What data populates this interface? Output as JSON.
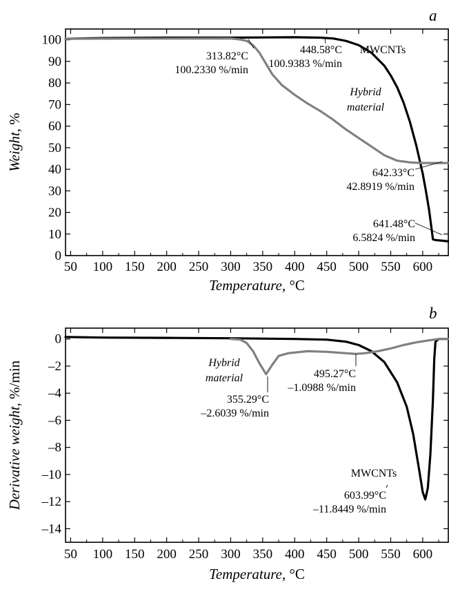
{
  "chart_data": [
    {
      "type": "line",
      "panel_label": "a",
      "xlabel": "Temperature",
      "xlabel_unit": "°C",
      "ylabel": "Weight",
      "ylabel_unit": "%",
      "xlim": [
        42,
        640
      ],
      "ylim": [
        0,
        105
      ],
      "xticks": [
        50,
        100,
        150,
        200,
        250,
        300,
        350,
        400,
        450,
        500,
        550,
        600
      ],
      "yticks": [
        0,
        10,
        20,
        30,
        40,
        50,
        60,
        70,
        80,
        90,
        100
      ],
      "grid": false,
      "series": [
        {
          "name": "MWCNTs",
          "color": "#000000",
          "x": [
            42,
            100,
            200,
            300,
            350,
            400,
            440,
            460,
            480,
            500,
            520,
            540,
            550,
            560,
            570,
            580,
            590,
            600,
            605,
            610,
            614,
            616,
            620,
            630,
            640
          ],
          "y": [
            100.5,
            100.8,
            101.0,
            101.0,
            101.1,
            101.2,
            101.0,
            100.6,
            99.5,
            97.5,
            94.0,
            88.0,
            83.5,
            78.0,
            71.0,
            62.0,
            51.0,
            38.0,
            30.0,
            21.0,
            12.0,
            7.5,
            7.2,
            6.9,
            6.6
          ]
        },
        {
          "name": "Hybrid material",
          "color": "#808080",
          "x": [
            42,
            300,
            314,
            325,
            335,
            345,
            355,
            365,
            380,
            400,
            420,
            440,
            460,
            480,
            500,
            520,
            540,
            560,
            580,
            600,
            620,
            640
          ],
          "y": [
            100.5,
            100.6,
            100.2,
            99.5,
            97.5,
            94.0,
            89.0,
            84.0,
            79.0,
            74.5,
            70.5,
            67.0,
            63.0,
            58.5,
            54.5,
            50.5,
            46.5,
            44.0,
            43.2,
            42.9,
            42.9,
            42.9
          ]
        }
      ],
      "annotations": [
        {
          "point": [
            313.82,
            100.2
          ],
          "text": [
            "313.82°C",
            "100.2330 %/min"
          ]
        },
        {
          "point": [
            448.58,
            100.9
          ],
          "text": [
            "448.58°C",
            "100.9383 %/min"
          ]
        },
        {
          "point": [
            642.33,
            42.9
          ],
          "text": [
            "642.33°C",
            "42.8919 %/min"
          ]
        },
        {
          "point": [
            641.48,
            6.6
          ],
          "text": [
            "641.48°C",
            "6.5824 %/min"
          ]
        }
      ],
      "series_labels": [
        {
          "series": "MWCNTs",
          "text": "MWCNTs",
          "italic": false
        },
        {
          "series": "Hybrid material",
          "text": [
            "Hybrid",
            "material"
          ],
          "italic": true
        }
      ]
    },
    {
      "type": "line",
      "panel_label": "b",
      "xlabel": "Temperature",
      "xlabel_unit": "°C",
      "ylabel": "Derivative weight",
      "ylabel_unit": "%/min",
      "xlim": [
        42,
        640
      ],
      "ylim": [
        -15,
        0.8
      ],
      "xticks": [
        50,
        100,
        150,
        200,
        250,
        300,
        350,
        400,
        450,
        500,
        550,
        600
      ],
      "yticks": [
        0,
        -2,
        -4,
        -6,
        -8,
        -10,
        -12,
        -14
      ],
      "ytick_labels": [
        "0",
        "–2",
        "–4",
        "–6",
        "–8",
        "–10",
        "–12",
        "–14"
      ],
      "grid": false,
      "series": [
        {
          "name": "MWCNTs",
          "color": "#000000",
          "x": [
            42,
            100,
            200,
            300,
            400,
            450,
            480,
            500,
            520,
            540,
            560,
            575,
            585,
            595,
            600,
            604,
            608,
            612,
            616,
            618,
            620,
            625,
            630,
            640
          ],
          "y": [
            0.15,
            0.1,
            0.08,
            0.05,
            0.0,
            -0.05,
            -0.2,
            -0.45,
            -0.9,
            -1.7,
            -3.2,
            -5.0,
            -7.0,
            -9.8,
            -11.3,
            -11.84,
            -11.0,
            -8.5,
            -4.5,
            -1.5,
            -0.2,
            0.0,
            0.0,
            0.0
          ]
        },
        {
          "name": "Hybrid material",
          "color": "#808080",
          "x": [
            300,
            315,
            325,
            335,
            345,
            355.29,
            365,
            375,
            390,
            420,
            450,
            480,
            495.27,
            510,
            530,
            550,
            570,
            590,
            610,
            625,
            640
          ],
          "y": [
            0.0,
            -0.05,
            -0.3,
            -0.9,
            -1.8,
            -2.6,
            -1.9,
            -1.25,
            -1.05,
            -0.9,
            -0.95,
            -1.05,
            -1.0988,
            -1.05,
            -0.9,
            -0.7,
            -0.45,
            -0.25,
            -0.1,
            0.0,
            0.0
          ]
        }
      ],
      "annotations": [
        {
          "point": [
            355.29,
            -2.6
          ],
          "text": [
            "355.29°C",
            "–2.6039 %/min"
          ]
        },
        {
          "point": [
            495.27,
            -1.1
          ],
          "text": [
            "495.27°C",
            "–1.0988 %/min"
          ]
        },
        {
          "point": [
            603.99,
            -11.84
          ],
          "text": [
            "603.99°C",
            "–11.8449 %/min"
          ]
        }
      ],
      "series_labels": [
        {
          "series": "Hybrid material",
          "text": [
            "Hybrid",
            "material"
          ],
          "italic": true
        },
        {
          "series": "MWCNTs",
          "text": "MWCNTs",
          "italic": false
        }
      ]
    }
  ]
}
